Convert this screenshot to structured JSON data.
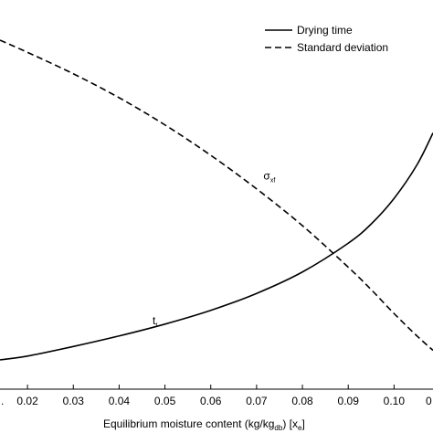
{
  "chart_data": {
    "type": "line",
    "xlabel": "Equilibrium moisture content (kg/kg",
    "xlabel_sub": "db",
    "xlabel_tail": ") [x",
    "xlabel_sub2": "e",
    "xlabel_end": "]",
    "xlim": [
      0.014,
      0.1085
    ],
    "ylim": [
      0,
      1
    ],
    "x_ticks": [
      0.02,
      0.03,
      0.04,
      0.05,
      0.06,
      0.07,
      0.08,
      0.09,
      0.1
    ],
    "x_tick_labels": [
      "0.02",
      "0.03",
      "0.04",
      "0.05",
      "0.06",
      "0.07",
      "0.08",
      "0.09",
      "0.10"
    ],
    "clipped_tick_left": ".",
    "clipped_tick_right": "0",
    "legend_placement": "top-right",
    "series": [
      {
        "name": "Drying time",
        "style": "solid",
        "x": [
          0.014,
          0.02,
          0.03,
          0.04,
          0.05,
          0.06,
          0.07,
          0.08,
          0.09,
          0.095,
          0.1,
          0.105,
          0.1085
        ],
        "y": [
          0.0,
          0.012,
          0.042,
          0.075,
          0.112,
          0.155,
          0.208,
          0.275,
          0.365,
          0.425,
          0.505,
          0.61,
          0.71
        ]
      },
      {
        "name": "Standard deviation",
        "style": "dashed",
        "x": [
          0.014,
          0.02,
          0.03,
          0.04,
          0.05,
          0.06,
          0.07,
          0.08,
          0.09,
          0.095,
          0.1,
          0.105,
          0.1085
        ],
        "y": [
          1.0,
          0.962,
          0.895,
          0.82,
          0.735,
          0.64,
          0.535,
          0.42,
          0.29,
          0.22,
          0.145,
          0.075,
          0.03
        ]
      }
    ],
    "annotations": [
      {
        "text": "σ",
        "sub": "xf",
        "x": 0.0715,
        "y": 0.565
      },
      {
        "text": "t",
        "sub": "t",
        "x": 0.0473,
        "y": 0.112
      }
    ]
  }
}
